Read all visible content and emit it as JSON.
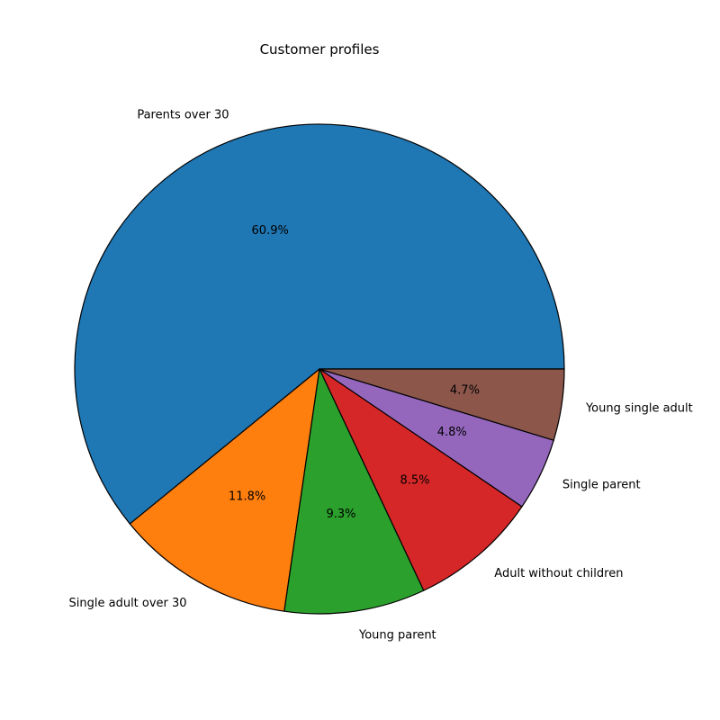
{
  "chart_data": {
    "type": "pie",
    "title": "Customer profiles",
    "start_angle_deg": 0,
    "direction": "counterclockwise",
    "edge_color": "#000000",
    "slices": [
      {
        "label": "Parents over 30",
        "value": 60.9,
        "pct_label": "60.9%",
        "color": "#1f77b4"
      },
      {
        "label": "Single adult over 30",
        "value": 11.8,
        "pct_label": "11.8%",
        "color": "#ff7f0e"
      },
      {
        "label": "Young parent",
        "value": 9.3,
        "pct_label": "9.3%",
        "color": "#2ca02c"
      },
      {
        "label": "Adult without children",
        "value": 8.5,
        "pct_label": "8.5%",
        "color": "#d62728"
      },
      {
        "label": "Single parent",
        "value": 4.8,
        "pct_label": "4.8%",
        "color": "#9467bd"
      },
      {
        "label": "Young single adult",
        "value": 4.7,
        "pct_label": "4.7%",
        "color": "#8c564b"
      }
    ]
  }
}
